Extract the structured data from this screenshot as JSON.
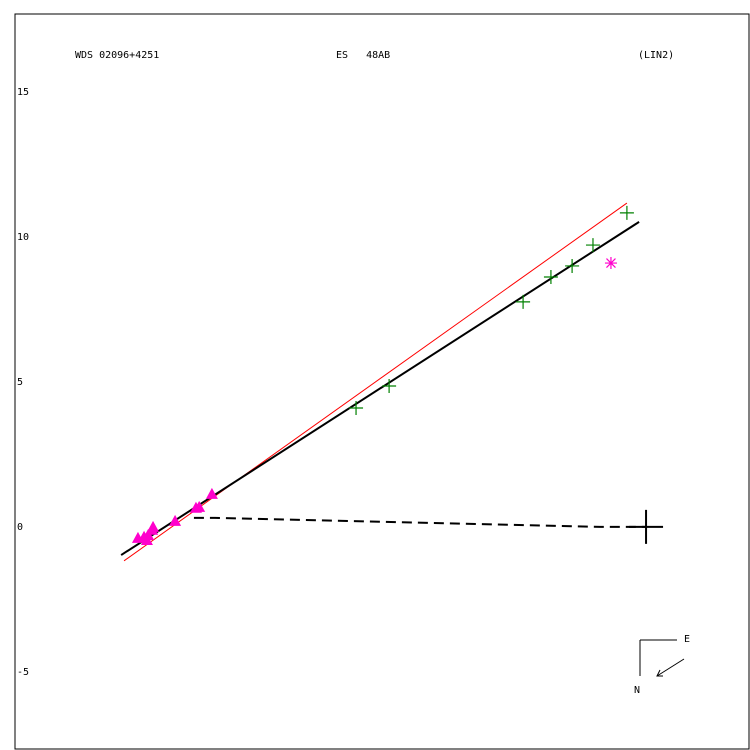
{
  "chart_data": {
    "type": "scatter",
    "title": "WDS 02096+4251",
    "subtitle": "ES   48AB",
    "annotation": "(LIN2)",
    "compass": {
      "east": "E",
      "north": "N"
    },
    "xlim": [
      -21.76,
      3.55
    ],
    "ylim": [
      -7.66,
      17.69
    ],
    "yticks": [
      15,
      10,
      5,
      0,
      -5
    ],
    "series": [
      {
        "color": "#ff0000",
        "style": "line",
        "x": [
          -18.0,
          -0.66
        ],
        "values": [
          -1.17,
          11.17
        ]
      },
      {
        "color": "#000000",
        "style": "line",
        "x": [
          -18.1,
          -0.24
        ],
        "values": [
          -0.97,
          10.52
        ]
      },
      {
        "color": "#000000",
        "style": "dashed",
        "x": [
          -15.59,
          -14.86,
          -1.59,
          0
        ],
        "values": [
          0.31,
          0.31,
          0,
          0
        ]
      },
      {
        "color": "#008000",
        "style": "plus",
        "x": [
          -10.0,
          -8.86,
          -4.24,
          -3.28,
          -2.55,
          -1.83,
          -0.66
        ],
        "values": [
          4.1,
          4.86,
          7.76,
          8.62,
          9.0,
          9.72,
          10.83
        ]
      },
      {
        "color": "#ff00cc",
        "style": "triangle",
        "x": [
          -17.52,
          -17.31,
          -17.17,
          -17.03,
          -17.0,
          -17.21,
          -16.24,
          -15.52,
          -15.41,
          -14.97
        ],
        "values": [
          -0.38,
          -0.34,
          -0.28,
          -0.1,
          0,
          -0.45,
          0.21,
          0.66,
          0.69,
          1.14
        ]
      },
      {
        "color": "#ff00cc",
        "style": "star",
        "x": [
          -1.21
        ],
        "values": [
          9.1
        ]
      },
      {
        "color": "#000000",
        "style": "cross",
        "x": [
          0
        ],
        "values": [
          0
        ]
      }
    ]
  }
}
